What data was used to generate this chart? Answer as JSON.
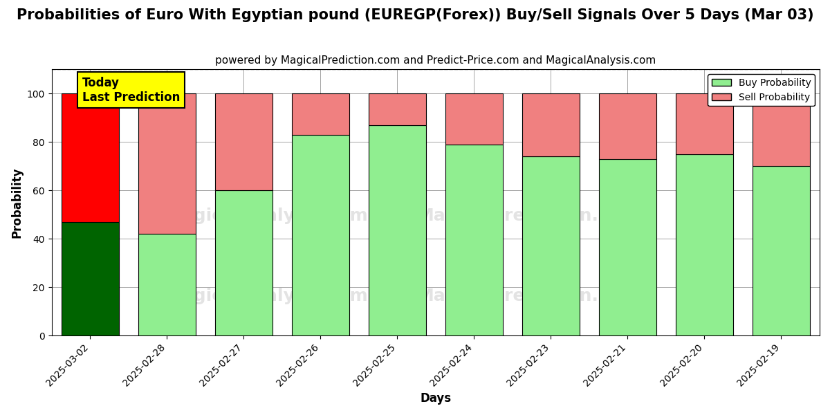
{
  "title": "Probabilities of Euro With Egyptian pound (EUREGP(Forex)) Buy/Sell Signals Over 5 Days (Mar 03)",
  "subtitle": "powered by MagicalPrediction.com and Predict-Price.com and MagicalAnalysis.com",
  "xlabel": "Days",
  "ylabel": "Probability",
  "categories": [
    "2025-03-02",
    "2025-02-28",
    "2025-02-27",
    "2025-02-26",
    "2025-02-25",
    "2025-02-24",
    "2025-02-23",
    "2025-02-21",
    "2025-02-20",
    "2025-02-19"
  ],
  "buy_values": [
    47,
    42,
    60,
    83,
    87,
    79,
    74,
    73,
    75,
    70
  ],
  "sell_values": [
    53,
    58,
    40,
    17,
    13,
    21,
    26,
    27,
    25,
    30
  ],
  "today_buy_color": "#006400",
  "today_sell_color": "#FF0000",
  "normal_buy_color": "#90EE90",
  "normal_sell_color": "#F08080",
  "today_annotation_text": "Today\nLast Prediction",
  "today_annotation_bg": "#FFFF00",
  "legend_buy_label": "Buy Probability",
  "legend_sell_label": "Sell Probability",
  "ylim": [
    0,
    110
  ],
  "dashed_line_y": 110,
  "background_color": "#ffffff",
  "title_fontsize": 15,
  "subtitle_fontsize": 11
}
